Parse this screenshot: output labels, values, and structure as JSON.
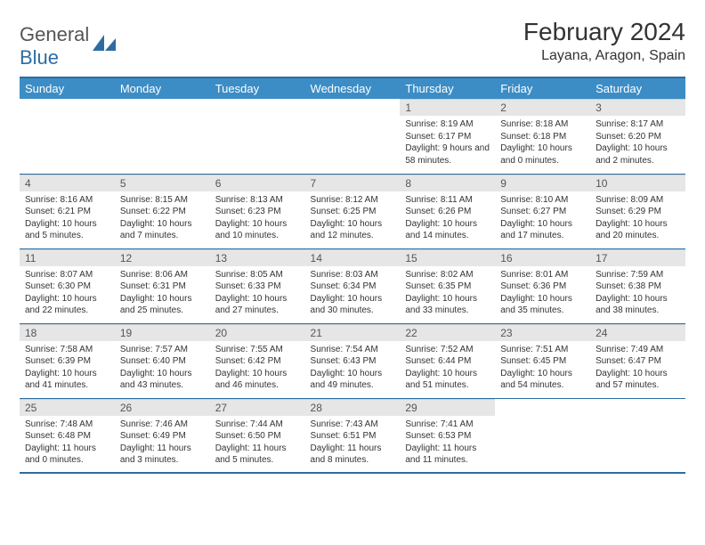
{
  "logo": {
    "word1": "General",
    "word2": "Blue"
  },
  "title": "February 2024",
  "location": "Layana, Aragon, Spain",
  "day_headers": [
    "Sunday",
    "Monday",
    "Tuesday",
    "Wednesday",
    "Thursday",
    "Friday",
    "Saturday"
  ],
  "colors": {
    "header_bg": "#3c8dc5",
    "header_text": "#ffffff",
    "rule": "#2d6ca2",
    "daynum_bg": "#e6e6e6",
    "text": "#333333"
  },
  "weeks": [
    [
      {
        "n": "",
        "sr": "",
        "ss": "",
        "dl": ""
      },
      {
        "n": "",
        "sr": "",
        "ss": "",
        "dl": ""
      },
      {
        "n": "",
        "sr": "",
        "ss": "",
        "dl": ""
      },
      {
        "n": "",
        "sr": "",
        "ss": "",
        "dl": ""
      },
      {
        "n": "1",
        "sr": "Sunrise: 8:19 AM",
        "ss": "Sunset: 6:17 PM",
        "dl": "Daylight: 9 hours and 58 minutes."
      },
      {
        "n": "2",
        "sr": "Sunrise: 8:18 AM",
        "ss": "Sunset: 6:18 PM",
        "dl": "Daylight: 10 hours and 0 minutes."
      },
      {
        "n": "3",
        "sr": "Sunrise: 8:17 AM",
        "ss": "Sunset: 6:20 PM",
        "dl": "Daylight: 10 hours and 2 minutes."
      }
    ],
    [
      {
        "n": "4",
        "sr": "Sunrise: 8:16 AM",
        "ss": "Sunset: 6:21 PM",
        "dl": "Daylight: 10 hours and 5 minutes."
      },
      {
        "n": "5",
        "sr": "Sunrise: 8:15 AM",
        "ss": "Sunset: 6:22 PM",
        "dl": "Daylight: 10 hours and 7 minutes."
      },
      {
        "n": "6",
        "sr": "Sunrise: 8:13 AM",
        "ss": "Sunset: 6:23 PM",
        "dl": "Daylight: 10 hours and 10 minutes."
      },
      {
        "n": "7",
        "sr": "Sunrise: 8:12 AM",
        "ss": "Sunset: 6:25 PM",
        "dl": "Daylight: 10 hours and 12 minutes."
      },
      {
        "n": "8",
        "sr": "Sunrise: 8:11 AM",
        "ss": "Sunset: 6:26 PM",
        "dl": "Daylight: 10 hours and 14 minutes."
      },
      {
        "n": "9",
        "sr": "Sunrise: 8:10 AM",
        "ss": "Sunset: 6:27 PM",
        "dl": "Daylight: 10 hours and 17 minutes."
      },
      {
        "n": "10",
        "sr": "Sunrise: 8:09 AM",
        "ss": "Sunset: 6:29 PM",
        "dl": "Daylight: 10 hours and 20 minutes."
      }
    ],
    [
      {
        "n": "11",
        "sr": "Sunrise: 8:07 AM",
        "ss": "Sunset: 6:30 PM",
        "dl": "Daylight: 10 hours and 22 minutes."
      },
      {
        "n": "12",
        "sr": "Sunrise: 8:06 AM",
        "ss": "Sunset: 6:31 PM",
        "dl": "Daylight: 10 hours and 25 minutes."
      },
      {
        "n": "13",
        "sr": "Sunrise: 8:05 AM",
        "ss": "Sunset: 6:33 PM",
        "dl": "Daylight: 10 hours and 27 minutes."
      },
      {
        "n": "14",
        "sr": "Sunrise: 8:03 AM",
        "ss": "Sunset: 6:34 PM",
        "dl": "Daylight: 10 hours and 30 minutes."
      },
      {
        "n": "15",
        "sr": "Sunrise: 8:02 AM",
        "ss": "Sunset: 6:35 PM",
        "dl": "Daylight: 10 hours and 33 minutes."
      },
      {
        "n": "16",
        "sr": "Sunrise: 8:01 AM",
        "ss": "Sunset: 6:36 PM",
        "dl": "Daylight: 10 hours and 35 minutes."
      },
      {
        "n": "17",
        "sr": "Sunrise: 7:59 AM",
        "ss": "Sunset: 6:38 PM",
        "dl": "Daylight: 10 hours and 38 minutes."
      }
    ],
    [
      {
        "n": "18",
        "sr": "Sunrise: 7:58 AM",
        "ss": "Sunset: 6:39 PM",
        "dl": "Daylight: 10 hours and 41 minutes."
      },
      {
        "n": "19",
        "sr": "Sunrise: 7:57 AM",
        "ss": "Sunset: 6:40 PM",
        "dl": "Daylight: 10 hours and 43 minutes."
      },
      {
        "n": "20",
        "sr": "Sunrise: 7:55 AM",
        "ss": "Sunset: 6:42 PM",
        "dl": "Daylight: 10 hours and 46 minutes."
      },
      {
        "n": "21",
        "sr": "Sunrise: 7:54 AM",
        "ss": "Sunset: 6:43 PM",
        "dl": "Daylight: 10 hours and 49 minutes."
      },
      {
        "n": "22",
        "sr": "Sunrise: 7:52 AM",
        "ss": "Sunset: 6:44 PM",
        "dl": "Daylight: 10 hours and 51 minutes."
      },
      {
        "n": "23",
        "sr": "Sunrise: 7:51 AM",
        "ss": "Sunset: 6:45 PM",
        "dl": "Daylight: 10 hours and 54 minutes."
      },
      {
        "n": "24",
        "sr": "Sunrise: 7:49 AM",
        "ss": "Sunset: 6:47 PM",
        "dl": "Daylight: 10 hours and 57 minutes."
      }
    ],
    [
      {
        "n": "25",
        "sr": "Sunrise: 7:48 AM",
        "ss": "Sunset: 6:48 PM",
        "dl": "Daylight: 11 hours and 0 minutes."
      },
      {
        "n": "26",
        "sr": "Sunrise: 7:46 AM",
        "ss": "Sunset: 6:49 PM",
        "dl": "Daylight: 11 hours and 3 minutes."
      },
      {
        "n": "27",
        "sr": "Sunrise: 7:44 AM",
        "ss": "Sunset: 6:50 PM",
        "dl": "Daylight: 11 hours and 5 minutes."
      },
      {
        "n": "28",
        "sr": "Sunrise: 7:43 AM",
        "ss": "Sunset: 6:51 PM",
        "dl": "Daylight: 11 hours and 8 minutes."
      },
      {
        "n": "29",
        "sr": "Sunrise: 7:41 AM",
        "ss": "Sunset: 6:53 PM",
        "dl": "Daylight: 11 hours and 11 minutes."
      },
      {
        "n": "",
        "sr": "",
        "ss": "",
        "dl": ""
      },
      {
        "n": "",
        "sr": "",
        "ss": "",
        "dl": ""
      }
    ]
  ]
}
